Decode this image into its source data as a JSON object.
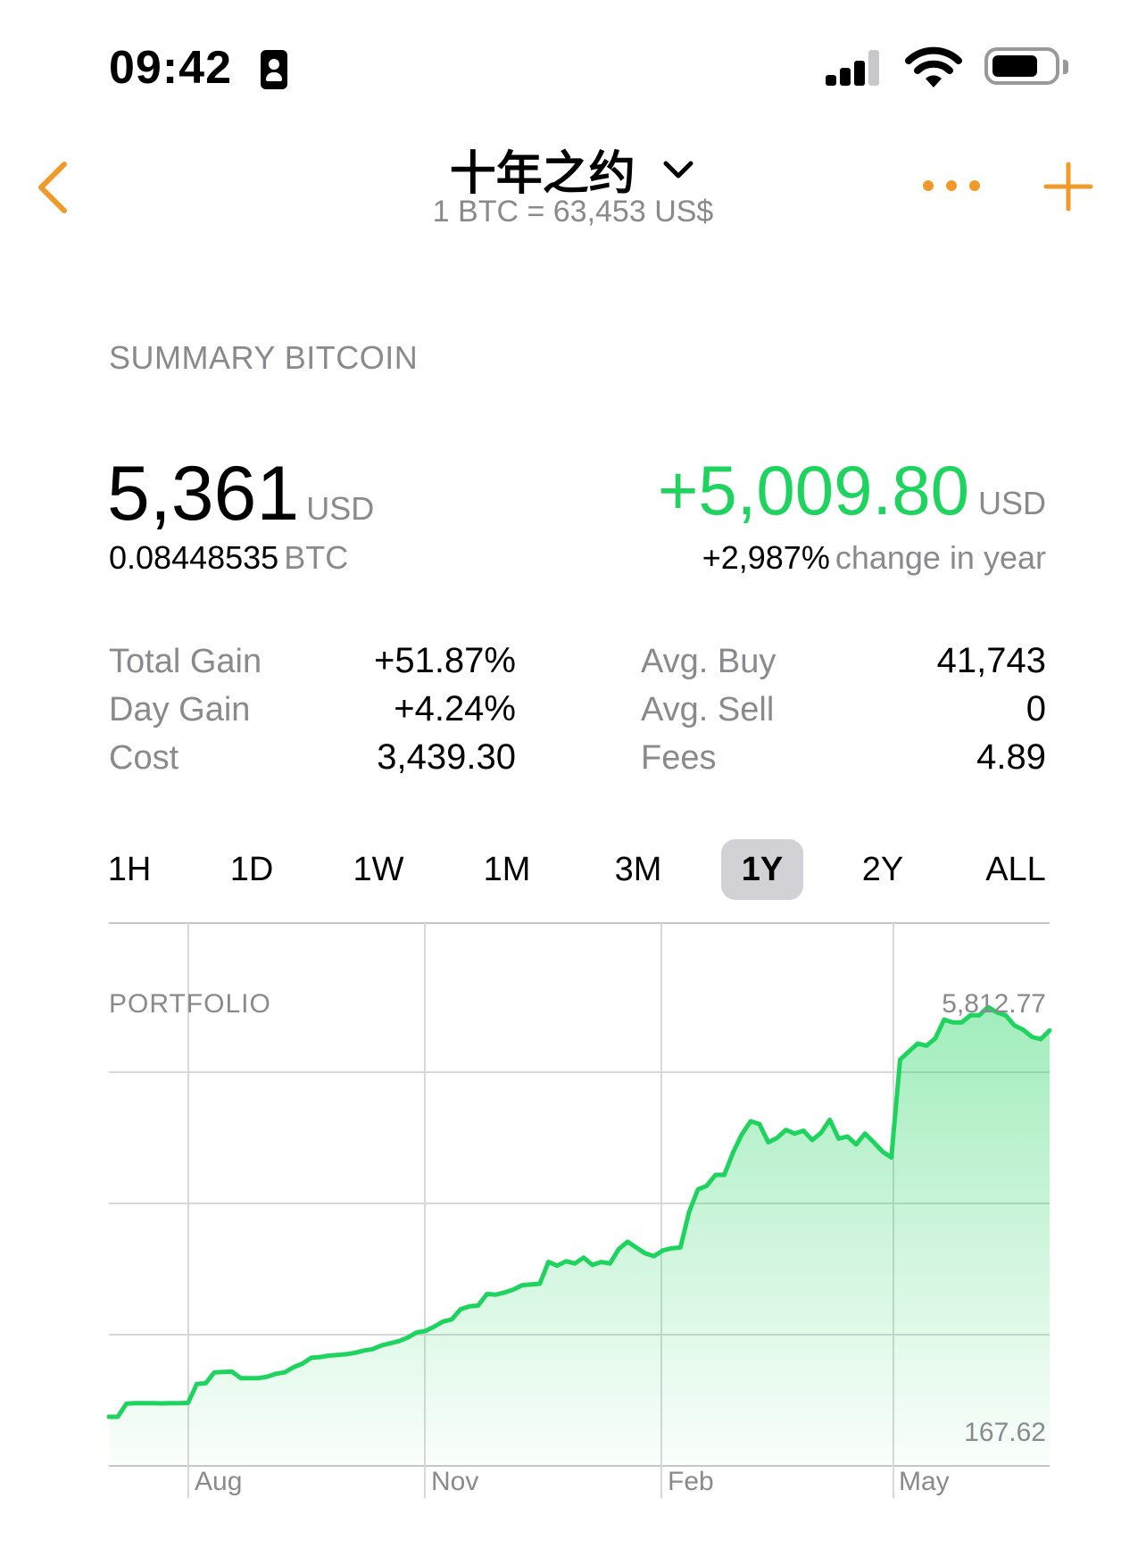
{
  "status_bar": {
    "time": "09:42"
  },
  "nav": {
    "title": "十年之约",
    "subtitle": "1 BTC = 63,453 US$",
    "accent_color": "#f09a2a"
  },
  "summary": {
    "section_label": "SUMMARY BITCOIN",
    "value": "5,361",
    "value_unit": "USD",
    "btc_amount": "0.08448535",
    "btc_unit": "BTC",
    "change_value": "+5,009.80",
    "change_unit": "USD",
    "change_pct": "+2,987%",
    "change_suffix": "change in year",
    "positive_color": "#1fd35f"
  },
  "stats": {
    "left": [
      {
        "label": "Total Gain",
        "value": "+51.87%"
      },
      {
        "label": "Day Gain",
        "value": "+4.24%"
      },
      {
        "label": "Cost",
        "value": "3,439.30"
      }
    ],
    "right": [
      {
        "label": "Avg. Buy",
        "value": "41,743"
      },
      {
        "label": "Avg. Sell",
        "value": "0"
      },
      {
        "label": "Fees",
        "value": "4.89"
      }
    ]
  },
  "ranges": {
    "items": [
      "1H",
      "1D",
      "1W",
      "1M",
      "3M",
      "1Y",
      "2Y",
      "ALL"
    ],
    "selected": "1Y"
  },
  "chart": {
    "label": "PORTFOLIO",
    "max_label": "5,812.77",
    "min_label": "167.62",
    "x_labels": [
      "Aug",
      "Nov",
      "Feb",
      "May"
    ]
  },
  "chart_data": {
    "type": "area",
    "title": "PORTFOLIO",
    "xlabel": "",
    "ylabel": "",
    "x_tick_labels": [
      "Aug",
      "Nov",
      "Feb",
      "May"
    ],
    "y_range_labels": {
      "max": 5812.77,
      "min": 167.62
    },
    "grid": true,
    "color": "#1fd35f",
    "series": [
      {
        "values": [
          167.62,
          167.6,
          350,
          355,
          355,
          355,
          352,
          356,
          355,
          360,
          620,
          630,
          780,
          785,
          790,
          700,
          700,
          700,
          720,
          760,
          780,
          850,
          900,
          980,
          990,
          1010,
          1020,
          1030,
          1050,
          1080,
          1100,
          1150,
          1180,
          1210,
          1260,
          1330,
          1350,
          1410,
          1480,
          1510,
          1650,
          1690,
          1700,
          1860,
          1850,
          1880,
          1920,
          1980,
          1990,
          2000,
          2300,
          2250,
          2310,
          2280,
          2360,
          2260,
          2300,
          2280,
          2480,
          2580,
          2500,
          2420,
          2380,
          2460,
          2490,
          2500,
          2990,
          3300,
          3350,
          3500,
          3500,
          3810,
          4060,
          4240,
          4200,
          3950,
          4010,
          4120,
          4070,
          4110,
          3980,
          4080,
          4260,
          4000,
          4030,
          3920,
          4070,
          3950,
          3820,
          3740,
          5090,
          5200,
          5310,
          5280,
          5380,
          5640,
          5600,
          5600,
          5700,
          5700,
          5812.77,
          5740,
          5700,
          5560,
          5500,
          5400,
          5370,
          5490
        ]
      }
    ]
  }
}
